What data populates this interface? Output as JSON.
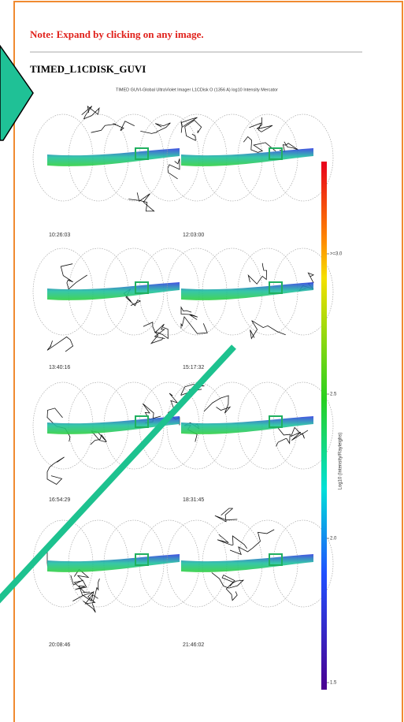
{
  "note": "Note: Expand by clicking on any image.",
  "title": "TIMED_L1CDISK_GUVI",
  "image": {
    "caption": "TIMED  GUVI-Global UltraViolet Imager  L1CDisk O (1356 A) log10 Intensity Mercator",
    "timestamps": [
      "10:26:03",
      "12:03:00",
      "13:40:16",
      "15:17:32",
      "16:54:29",
      "18:31:45",
      "20:08:46",
      "21:46:02"
    ],
    "colorbar": {
      "ticks": [
        ">=3.0",
        "2.5",
        "2.0",
        "1.5"
      ],
      "label": "Log10 (Intensity/Rayleighs)"
    }
  }
}
